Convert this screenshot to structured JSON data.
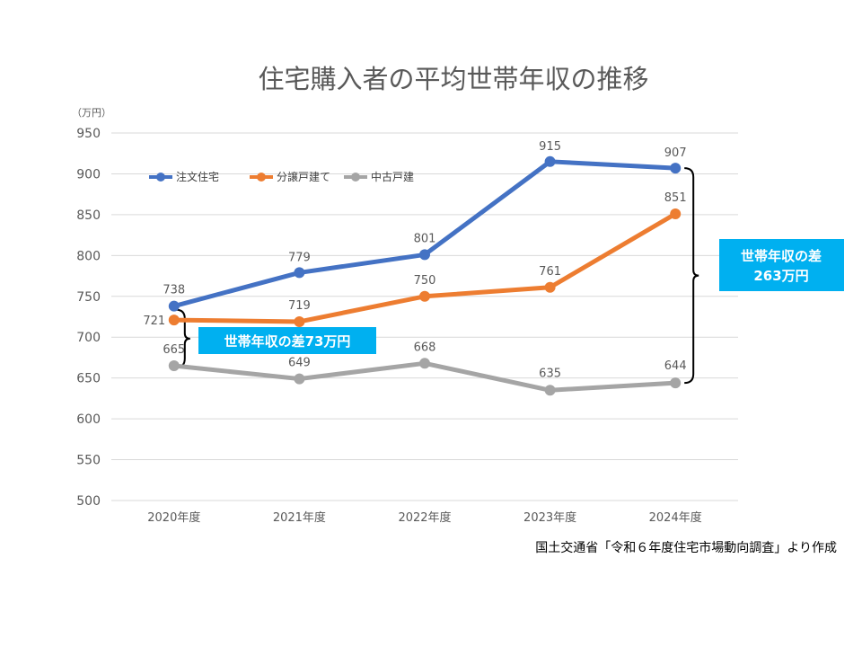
{
  "chart_data": {
    "type": "line",
    "title": "住宅購入者の平均世帯年収の推移",
    "unit_label": "（万円）",
    "categories": [
      "2020年度",
      "2021年度",
      "2022年度",
      "2023年度",
      "2024年度"
    ],
    "ylim": [
      500,
      950
    ],
    "yticks": [
      500,
      550,
      600,
      650,
      700,
      750,
      800,
      850,
      900,
      950
    ],
    "grid": true,
    "legend_position": "top-left",
    "series": [
      {
        "name": "注文住宅",
        "values": [
          738,
          779,
          801,
          915,
          907
        ],
        "color": "#4472c4"
      },
      {
        "name": "分譲戸建て",
        "values": [
          721,
          719,
          750,
          761,
          851
        ],
        "color": "#ed7d31"
      },
      {
        "name": "中古戸建",
        "values": [
          665,
          649,
          668,
          635,
          644
        ],
        "color": "#a5a5a5"
      }
    ],
    "annotations": [
      {
        "text": "世帯年収の差73万円",
        "color": "#00b0f0"
      },
      {
        "lines": [
          "世帯年収の差",
          "263万円"
        ],
        "color": "#00b0f0"
      }
    ]
  },
  "source": "国土交通省「令和６年度住宅市場動向調査」より作成"
}
